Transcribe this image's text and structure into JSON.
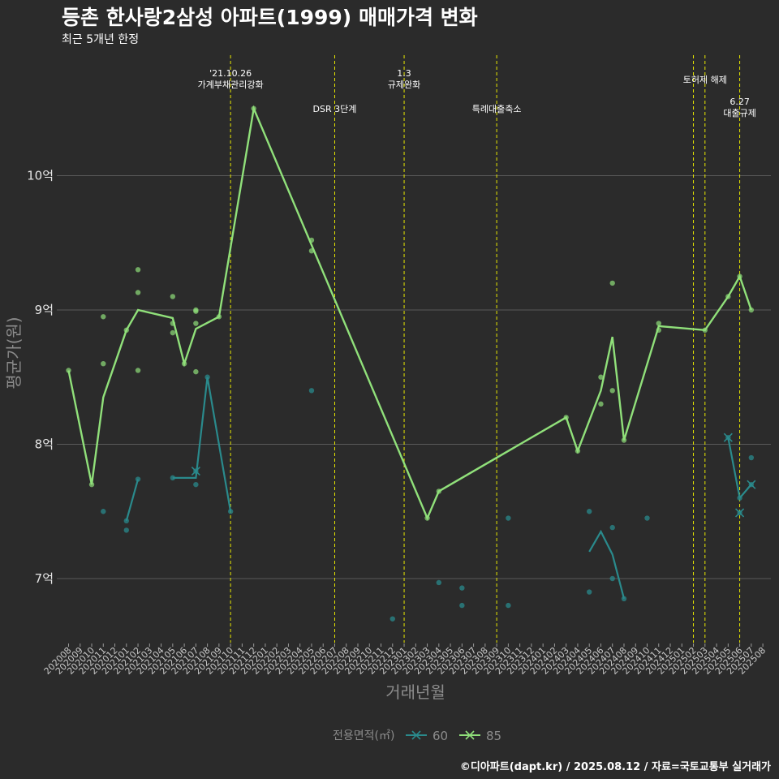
{
  "header": {
    "title": "등촌 한사랑2삼성 아파트(1999) 매매가격 변화",
    "subtitle": "최근 5개년 한정"
  },
  "footer": {
    "credit": "©디아파트(dapt.kr) / 2025.08.12 / 자료=국토교통부 실거래가"
  },
  "colors": {
    "background": "#2b2b2b",
    "grid": "#5a5a5a",
    "series_60": "#2a8a8c",
    "series_85": "#90e07a",
    "event_line": "#e8e800"
  },
  "chart_data": {
    "type": "line",
    "xlabel": "거래년월",
    "ylabel": "평균가(원)",
    "ylim": [
      6.55,
      10.95
    ],
    "yticks": [
      {
        "value": 7,
        "label": "7억"
      },
      {
        "value": 8,
        "label": "8억"
      },
      {
        "value": 9,
        "label": "9억"
      },
      {
        "value": 10,
        "label": "10억"
      }
    ],
    "categories": [
      "202008",
      "202009",
      "202010",
      "202011",
      "202012",
      "202101",
      "202102",
      "202103",
      "202104",
      "202105",
      "202106",
      "202107",
      "202108",
      "202109",
      "202110",
      "202111",
      "202112",
      "202201",
      "202202",
      "202203",
      "202204",
      "202205",
      "202206",
      "202207",
      "202208",
      "202209",
      "202210",
      "202211",
      "202212",
      "202301",
      "202302",
      "202303",
      "202304",
      "202305",
      "202306",
      "202307",
      "202308",
      "202309",
      "202310",
      "202311",
      "202312",
      "202401",
      "202402",
      "202403",
      "202404",
      "202405",
      "202406",
      "202407",
      "202408",
      "202409",
      "202410",
      "202411",
      "202412",
      "202501",
      "202502",
      "202503",
      "202504",
      "202505",
      "202506",
      "202507",
      "202508"
    ],
    "legend": {
      "title": "전용면적(㎡)",
      "position": "bottom"
    },
    "grid": true,
    "series": [
      {
        "name": "60",
        "color": "#2a8a8c",
        "segments": [
          [
            [
              "202101",
              7.43
            ],
            [
              "202102",
              7.74
            ]
          ],
          [
            [
              "202105",
              7.75
            ],
            [
              "202106",
              7.75
            ],
            [
              "202107",
              7.75
            ],
            [
              "202108",
              8.5
            ],
            [
              "202110",
              7.5
            ]
          ],
          [
            [
              "202405",
              7.2
            ],
            [
              "202406",
              7.35
            ],
            [
              "202407",
              7.18
            ],
            [
              "202408",
              6.85
            ]
          ],
          [
            [
              "202505",
              8.05
            ],
            [
              "202506",
              7.6
            ],
            [
              "202507",
              7.7
            ]
          ]
        ],
        "x_markers": [
          [
            "202107",
            7.8
          ],
          [
            "202505",
            8.05
          ],
          [
            "202506",
            7.49
          ],
          [
            "202507",
            7.7
          ]
        ],
        "points": [
          [
            "202101",
            7.43
          ],
          [
            "202101",
            7.36
          ],
          [
            "202102",
            7.74
          ],
          [
            "202011",
            7.5
          ],
          [
            "202105",
            7.75
          ],
          [
            "202107",
            7.7
          ],
          [
            "202107",
            7.8
          ],
          [
            "202108",
            8.5
          ],
          [
            "202110",
            7.5
          ],
          [
            "202205",
            8.4
          ],
          [
            "202212",
            6.7
          ],
          [
            "202304",
            6.97
          ],
          [
            "202306",
            6.93
          ],
          [
            "202306",
            6.8
          ],
          [
            "202310",
            7.45
          ],
          [
            "202310",
            6.8
          ],
          [
            "202405",
            7.5
          ],
          [
            "202405",
            6.9
          ],
          [
            "202407",
            7.38
          ],
          [
            "202407",
            7.0
          ],
          [
            "202408",
            6.85
          ],
          [
            "202410",
            7.45
          ],
          [
            "202505",
            8.05
          ],
          [
            "202506",
            7.6
          ],
          [
            "202506",
            7.49
          ],
          [
            "202507",
            7.9
          ],
          [
            "202507",
            7.7
          ]
        ]
      },
      {
        "name": "85",
        "color": "#90e07a",
        "line": [
          [
            "202008",
            8.55
          ],
          [
            "202010",
            7.7
          ],
          [
            "202011",
            8.35
          ],
          [
            "202101",
            8.85
          ],
          [
            "202102",
            9.0
          ],
          [
            "202105",
            8.94
          ],
          [
            "202106",
            8.6
          ],
          [
            "202107",
            8.86
          ],
          [
            "202109",
            8.95
          ],
          [
            "202112",
            10.5
          ],
          [
            "202303",
            7.45
          ],
          [
            "202304",
            7.65
          ],
          [
            "202403",
            8.2
          ],
          [
            "202404",
            7.95
          ],
          [
            "202406",
            8.4
          ],
          [
            "202407",
            8.8
          ],
          [
            "202408",
            8.03
          ],
          [
            "202411",
            8.88
          ],
          [
            "202503",
            8.85
          ],
          [
            "202505",
            9.1
          ],
          [
            "202506",
            9.25
          ],
          [
            "202507",
            9.0
          ]
        ],
        "points": [
          [
            "202008",
            8.55
          ],
          [
            "202010",
            7.7
          ],
          [
            "202011",
            8.95
          ],
          [
            "202011",
            8.6
          ],
          [
            "202101",
            8.85
          ],
          [
            "202102",
            9.3
          ],
          [
            "202102",
            9.13
          ],
          [
            "202102",
            8.55
          ],
          [
            "202105",
            9.1
          ],
          [
            "202105",
            8.9
          ],
          [
            "202105",
            8.83
          ],
          [
            "202106",
            8.6
          ],
          [
            "202107",
            9.0
          ],
          [
            "202107",
            8.99
          ],
          [
            "202107",
            8.9
          ],
          [
            "202107",
            8.54
          ],
          [
            "202109",
            8.95
          ],
          [
            "202112",
            10.5
          ],
          [
            "202205",
            9.52
          ],
          [
            "202205",
            9.44
          ],
          [
            "202303",
            7.45
          ],
          [
            "202304",
            7.65
          ],
          [
            "202403",
            8.2
          ],
          [
            "202404",
            7.95
          ],
          [
            "202406",
            8.5
          ],
          [
            "202406",
            8.3
          ],
          [
            "202407",
            9.2
          ],
          [
            "202407",
            8.4
          ],
          [
            "202408",
            8.03
          ],
          [
            "202411",
            8.9
          ],
          [
            "202411",
            8.85
          ],
          [
            "202503",
            8.85
          ],
          [
            "202505",
            9.1
          ],
          [
            "202506",
            9.25
          ],
          [
            "202507",
            9.0
          ]
        ]
      }
    ],
    "events": [
      {
        "x": "202110",
        "text": [
          "'21.10.26",
          "가계부채관리강화"
        ],
        "row": 0
      },
      {
        "x": "202207",
        "text": [
          "DSR 3단계"
        ],
        "row": 1
      },
      {
        "x": "202301",
        "text": [
          "1.3",
          "규제완화"
        ],
        "row": 0
      },
      {
        "x": "202309",
        "text": [
          "특례대출축소"
        ],
        "row": 1
      },
      {
        "x": "202502",
        "text": [],
        "row": 0
      },
      {
        "x": "202503",
        "text": [
          "토허제 해제"
        ],
        "row": 2
      },
      {
        "x": "202506",
        "text": [
          "6.27",
          "대출규제"
        ],
        "row": 3
      }
    ]
  }
}
